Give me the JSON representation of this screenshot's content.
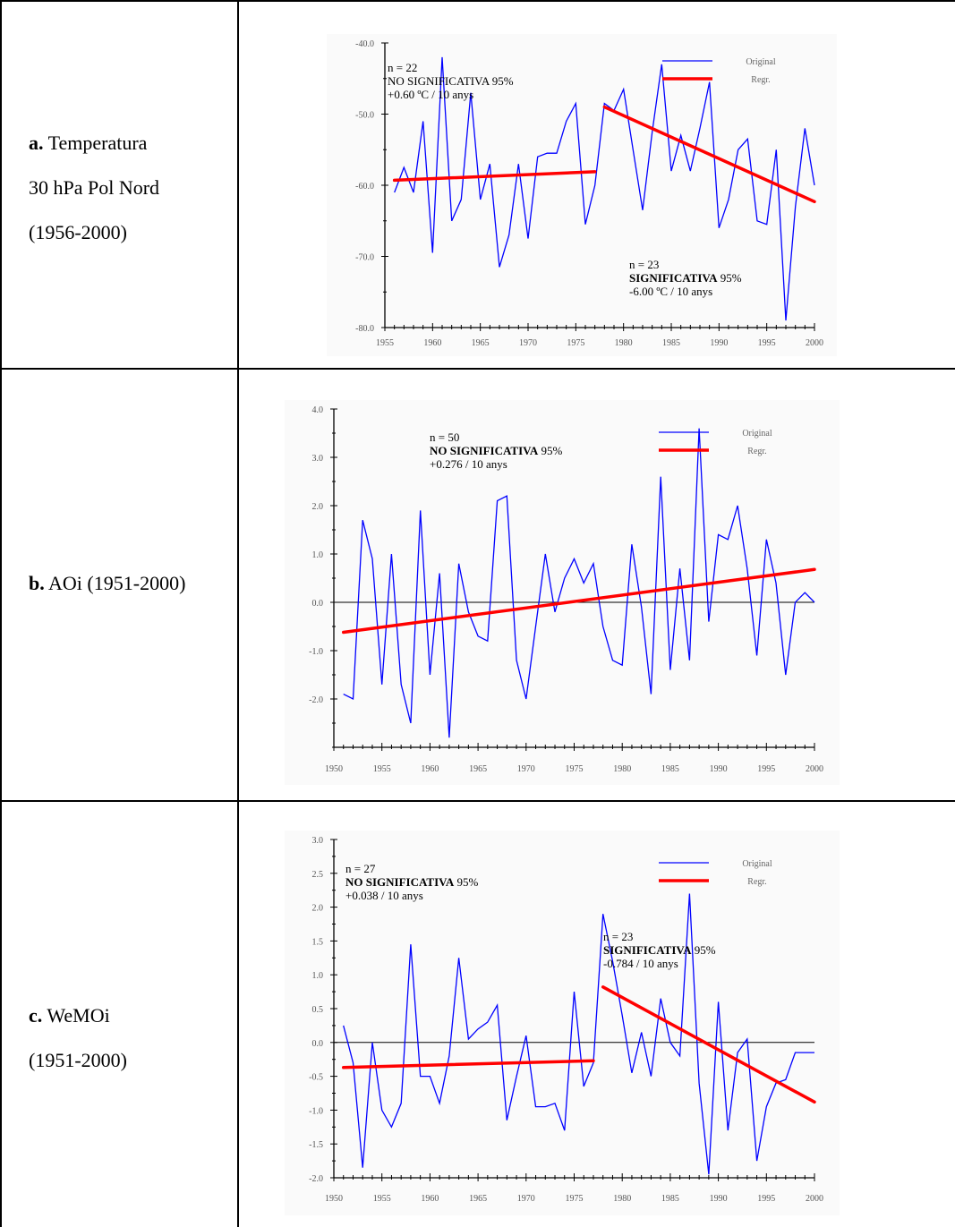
{
  "rows": [
    {
      "letter": "a.",
      "lines": [
        " Temperatura",
        "30 hPa Pol Nord",
        "(1956-2000)"
      ]
    },
    {
      "letter": "b.",
      "lines": [
        " AOi (1951-2000)"
      ]
    },
    {
      "letter": "c.",
      "lines": [
        " WeMOi",
        "(1951-2000)"
      ]
    }
  ],
  "chart_data": [
    {
      "type": "line",
      "x": [
        1956,
        1957,
        1958,
        1959,
        1960,
        1961,
        1962,
        1963,
        1964,
        1965,
        1966,
        1967,
        1968,
        1969,
        1970,
        1971,
        1972,
        1973,
        1974,
        1975,
        1976,
        1977,
        1978,
        1979,
        1980,
        1981,
        1982,
        1983,
        1984,
        1985,
        1986,
        1987,
        1988,
        1989,
        1990,
        1991,
        1992,
        1993,
        1994,
        1995,
        1996,
        1997,
        1998,
        1999,
        2000
      ],
      "series": [
        {
          "name": "Original",
          "color": "#0000ff",
          "values": [
            -61,
            -57.5,
            -61,
            -51,
            -69.5,
            -42,
            -65,
            -62,
            -47,
            -62,
            -57,
            -71.5,
            -67,
            -57,
            -67.5,
            -56,
            -55.5,
            -55.5,
            -51,
            -48.5,
            -65.5,
            -60,
            -48.5,
            -49.5,
            -46.5,
            -55,
            -63.5,
            -52.5,
            -43,
            -58,
            -53,
            -58,
            -52,
            -45.5,
            -66,
            -62,
            -55,
            -53.5,
            -65,
            -65.5,
            -55,
            -79,
            -63,
            -52,
            -60
          ]
        },
        {
          "name": "Regr.",
          "color": "#ff0000",
          "style": "thick-red",
          "segments": [
            {
              "x": [
                1956,
                1977
              ],
              "y": [
                -59.3,
                -58.1
              ]
            },
            {
              "x": [
                1978,
                2000
              ],
              "y": [
                -49,
                -62.3
              ]
            }
          ]
        }
      ],
      "xlim": [
        1955,
        2000
      ],
      "ylim": [
        -80,
        -40
      ],
      "xticks": [
        1955,
        1960,
        1965,
        1970,
        1975,
        1980,
        1985,
        1990,
        1995,
        2000
      ],
      "yticks": [
        -40,
        -50,
        -60,
        -70,
        -80
      ],
      "ytick_labels": [
        "-40.0",
        "-50.0",
        "-60.0",
        "-70.0",
        "-80.0"
      ],
      "zero_line": false,
      "legend": {
        "position": "top-right",
        "entries": [
          "Original",
          "Regr."
        ]
      },
      "annotations": [
        {
          "lines": [
            {
              "text": "n = 22",
              "bold": false
            },
            {
              "text": "NO SIGNIFICATIVA",
              "bold": false,
              "suffix": "  95%"
            },
            {
              "text": "+0.60 ºC / 10 anys",
              "bold": false
            }
          ]
        },
        {
          "lines": [
            {
              "text": "n = 23",
              "bold": false
            },
            {
              "text": "SIGNIFICATIVA",
              "bold": true,
              "suffix": "  95%"
            },
            {
              "text": "-6.00 ºC / 10 anys",
              "bold": false
            }
          ]
        }
      ]
    },
    {
      "type": "line",
      "x": [
        1951,
        1952,
        1953,
        1954,
        1955,
        1956,
        1957,
        1958,
        1959,
        1960,
        1961,
        1962,
        1963,
        1964,
        1965,
        1966,
        1967,
        1968,
        1969,
        1970,
        1971,
        1972,
        1973,
        1974,
        1975,
        1976,
        1977,
        1978,
        1979,
        1980,
        1981,
        1982,
        1983,
        1984,
        1985,
        1986,
        1987,
        1988,
        1989,
        1990,
        1991,
        1992,
        1993,
        1994,
        1995,
        1996,
        1997,
        1998,
        1999,
        2000
      ],
      "series": [
        {
          "name": "Original",
          "color": "#0000ff",
          "values": [
            -1.9,
            -2.0,
            1.7,
            0.9,
            -1.7,
            1.0,
            -1.7,
            -2.5,
            1.9,
            -1.5,
            0.6,
            -2.8,
            0.8,
            -0.2,
            -0.7,
            -0.8,
            2.1,
            2.2,
            -1.2,
            -2.0,
            -0.5,
            1.0,
            -0.2,
            0.5,
            0.9,
            0.4,
            0.8,
            -0.5,
            -1.2,
            -1.3,
            1.2,
            -0.1,
            -1.9,
            2.6,
            -1.4,
            0.7,
            -1.2,
            3.6,
            -0.4,
            1.4,
            1.3,
            2.0,
            0.7,
            -1.1,
            1.3,
            0.4,
            -1.5,
            0.0,
            0.2,
            0.0
          ]
        },
        {
          "name": "Regr.",
          "color": "#ff0000",
          "style": "thick-red",
          "segments": [
            {
              "x": [
                1951,
                2000
              ],
              "y": [
                -0.62,
                0.68
              ]
            }
          ]
        }
      ],
      "xlim": [
        1950,
        2000
      ],
      "ylim": [
        -3,
        4
      ],
      "xticks": [
        1950,
        1955,
        1960,
        1965,
        1970,
        1975,
        1980,
        1985,
        1990,
        1995,
        2000
      ],
      "yticks": [
        4,
        3,
        2,
        1,
        0,
        -1,
        -2
      ],
      "ytick_labels": [
        "4.0",
        "3.0",
        "2.0",
        "1.0",
        "0.0",
        "-1.0",
        "-2.0"
      ],
      "zero_line": true,
      "legend": {
        "position": "top-right",
        "entries": [
          "Original",
          "Regr."
        ]
      },
      "annotations": [
        {
          "lines": [
            {
              "text": "n = 50",
              "bold": false
            },
            {
              "text": "NO SIGNIFICATIVA",
              "bold": true,
              "suffix": "  95%"
            },
            {
              "text": "+0.276 / 10 anys",
              "bold": false
            }
          ]
        }
      ]
    },
    {
      "type": "line",
      "x": [
        1951,
        1952,
        1953,
        1954,
        1955,
        1956,
        1957,
        1958,
        1959,
        1960,
        1961,
        1962,
        1963,
        1964,
        1965,
        1966,
        1967,
        1968,
        1969,
        1970,
        1971,
        1972,
        1973,
        1974,
        1975,
        1976,
        1977,
        1978,
        1979,
        1980,
        1981,
        1982,
        1983,
        1984,
        1985,
        1986,
        1987,
        1988,
        1989,
        1990,
        1991,
        1992,
        1993,
        1994,
        1995,
        1996,
        1997,
        1998,
        1999,
        2000
      ],
      "series": [
        {
          "name": "Original",
          "color": "#0000ff",
          "values": [
            0.25,
            -0.3,
            -1.85,
            0.0,
            -1.0,
            -1.25,
            -0.9,
            1.45,
            -0.5,
            -0.5,
            -0.9,
            -0.2,
            1.25,
            0.05,
            0.2,
            0.3,
            0.55,
            -1.15,
            -0.5,
            0.1,
            -0.95,
            -0.95,
            -0.9,
            -1.3,
            0.75,
            -0.65,
            -0.3,
            1.9,
            1.2,
            0.4,
            -0.45,
            0.15,
            -0.5,
            0.65,
            0.0,
            -0.2,
            2.2,
            -0.6,
            -1.95,
            0.6,
            -1.3,
            -0.15,
            0.05,
            -1.75,
            -0.95,
            -0.6,
            -0.55,
            -0.15,
            -0.15,
            -0.15
          ]
        },
        {
          "name": "Regr.",
          "color": "#ff0000",
          "style": "thick-red",
          "segments": [
            {
              "x": [
                1951,
                1977
              ],
              "y": [
                -0.37,
                -0.27
              ]
            },
            {
              "x": [
                1978,
                2000
              ],
              "y": [
                0.82,
                -0.88
              ]
            }
          ]
        }
      ],
      "xlim": [
        1950,
        2000
      ],
      "ylim": [
        -2,
        3
      ],
      "xticks": [
        1950,
        1955,
        1960,
        1965,
        1970,
        1975,
        1980,
        1985,
        1990,
        1995,
        2000
      ],
      "yticks": [
        3,
        2.5,
        2,
        1.5,
        1,
        0.5,
        0,
        -0.5,
        -1,
        -1.5,
        -2
      ],
      "ytick_labels": [
        "3.0",
        "2.5",
        "2.0",
        "1.5",
        "1.0",
        "0.5",
        "0.0",
        "-0.5",
        "-1.0",
        "-1.5",
        "-2.0"
      ],
      "zero_line": true,
      "legend": {
        "position": "top-right",
        "entries": [
          "Original",
          "Regr."
        ]
      },
      "annotations": [
        {
          "lines": [
            {
              "text": "n = 27",
              "bold": false
            },
            {
              "text": "NO SIGNIFICATIVA",
              "bold": true,
              "suffix": "  95%"
            },
            {
              "text": "+0.038 / 10 anys",
              "bold": false
            }
          ]
        },
        {
          "lines": [
            {
              "text": "n = 23",
              "bold": false
            },
            {
              "text": "SIGNIFICATIVA",
              "bold": true,
              "suffix": "  95%"
            },
            {
              "text": "-0.784 / 10 anys",
              "bold": false
            }
          ]
        }
      ]
    }
  ]
}
